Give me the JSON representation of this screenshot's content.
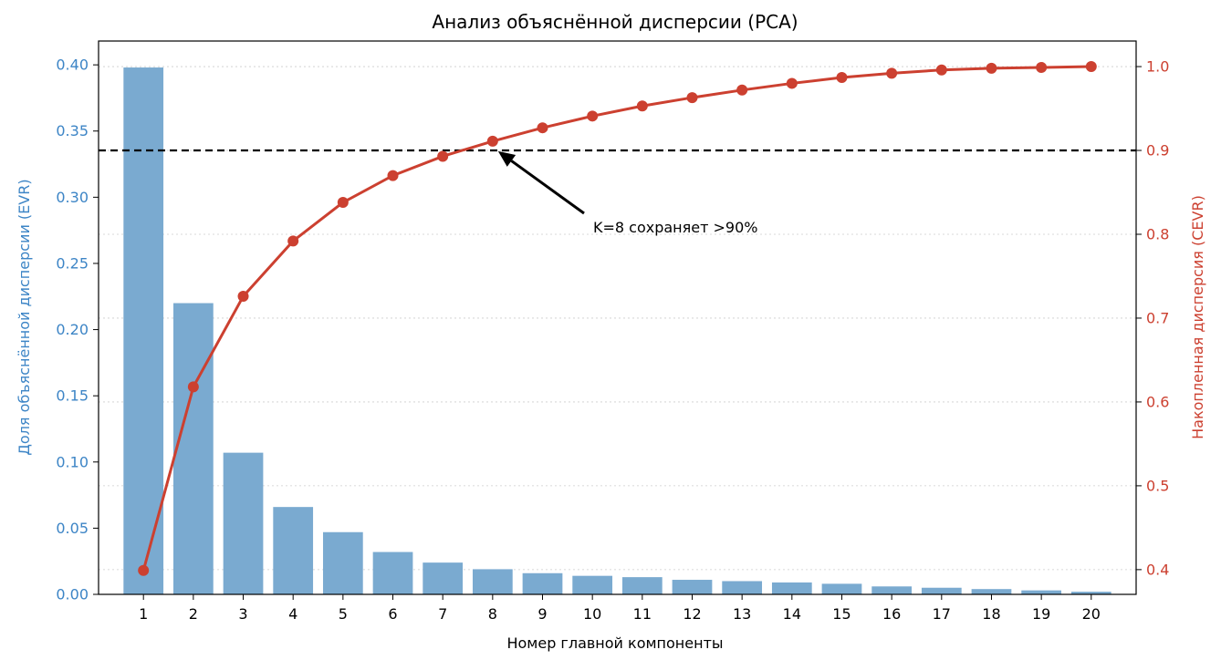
{
  "chart_data": {
    "type": "bar",
    "title": "Анализ объяснённой дисперсии (PCA)",
    "xlabel": "Номер главной компоненты",
    "ylabel": "Доля объяснённой дисперсии (EVR)",
    "ylabel_right": "Накопленная дисперсия (CEVR)",
    "categories": [
      1,
      2,
      3,
      4,
      5,
      6,
      7,
      8,
      9,
      10,
      11,
      12,
      13,
      14,
      15,
      16,
      17,
      18,
      19,
      20
    ],
    "y_ticks": [
      "0.00",
      "0.05",
      "0.10",
      "0.15",
      "0.20",
      "0.25",
      "0.30",
      "0.35",
      "0.40"
    ],
    "y2_ticks": [
      "0.4",
      "0.5",
      "0.6",
      "0.7",
      "0.8",
      "0.9",
      "1.0"
    ],
    "ylim": [
      0,
      0.418
    ],
    "y2lim": [
      0.3705,
      1.0305
    ],
    "grid": true,
    "series": [
      {
        "type": "bar",
        "axis": "left",
        "values": [
          0.398,
          0.22,
          0.107,
          0.066,
          0.047,
          0.032,
          0.024,
          0.019,
          0.016,
          0.014,
          0.013,
          0.011,
          0.01,
          0.009,
          0.008,
          0.006,
          0.005,
          0.004,
          0.003,
          0.002
        ]
      },
      {
        "type": "line",
        "axis": "right",
        "values": [
          0.399,
          0.618,
          0.726,
          0.792,
          0.838,
          0.87,
          0.893,
          0.911,
          0.927,
          0.941,
          0.953,
          0.963,
          0.972,
          0.98,
          0.987,
          0.992,
          0.996,
          0.998,
          0.999,
          1.0
        ]
      }
    ],
    "threshold": 0.9,
    "annotation": {
      "text": "K=8 сохраняет >90%",
      "target_index": 7
    },
    "colors": {
      "bar": "#7aaad0",
      "line": "#cc4030",
      "left_axis": "#3d85c6",
      "right_axis": "#cc4030",
      "threshold": "#000000"
    }
  }
}
